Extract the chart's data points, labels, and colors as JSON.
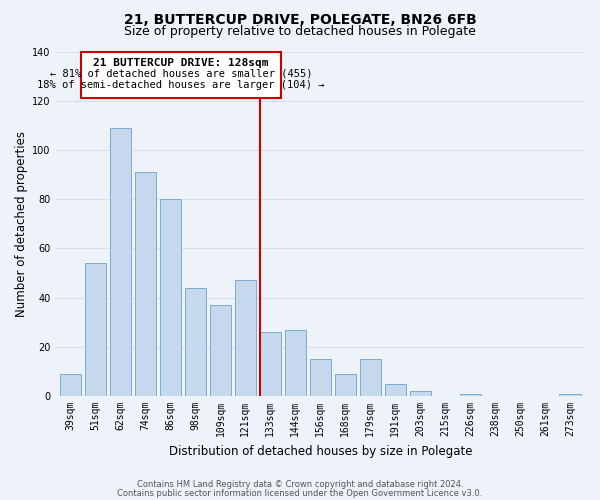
{
  "title": "21, BUTTERCUP DRIVE, POLEGATE, BN26 6FB",
  "subtitle": "Size of property relative to detached houses in Polegate",
  "xlabel": "Distribution of detached houses by size in Polegate",
  "ylabel": "Number of detached properties",
  "bar_labels": [
    "39sqm",
    "51sqm",
    "62sqm",
    "74sqm",
    "86sqm",
    "98sqm",
    "109sqm",
    "121sqm",
    "133sqm",
    "144sqm",
    "156sqm",
    "168sqm",
    "179sqm",
    "191sqm",
    "203sqm",
    "215sqm",
    "226sqm",
    "238sqm",
    "250sqm",
    "261sqm",
    "273sqm"
  ],
  "bar_values": [
    9,
    54,
    109,
    91,
    80,
    44,
    37,
    47,
    26,
    27,
    15,
    9,
    15,
    5,
    2,
    0,
    1,
    0,
    0,
    0,
    1
  ],
  "bar_color": "#c5d8ee",
  "bar_edge_color": "#7aadd4",
  "ylim": [
    0,
    140
  ],
  "yticks": [
    0,
    20,
    40,
    60,
    80,
    100,
    120,
    140
  ],
  "annotation_title": "21 BUTTERCUP DRIVE: 128sqm",
  "annotation_line1": "← 81% of detached houses are smaller (455)",
  "annotation_line2": "18% of semi-detached houses are larger (104) →",
  "annotation_box_color": "#ffffff",
  "annotation_box_edge": "#cc0000",
  "vline_color": "#cc0000",
  "footer_line1": "Contains HM Land Registry data © Crown copyright and database right 2024.",
  "footer_line2": "Contains public sector information licensed under the Open Government Licence v3.0.",
  "background_color": "#eef2f9",
  "grid_color": "#d8e0ee",
  "title_fontsize": 10,
  "subtitle_fontsize": 9,
  "axis_label_fontsize": 8.5,
  "tick_fontsize": 7,
  "footer_fontsize": 6,
  "ann_fontsize_title": 8,
  "ann_fontsize_body": 7.5,
  "vline_x_index": 8
}
